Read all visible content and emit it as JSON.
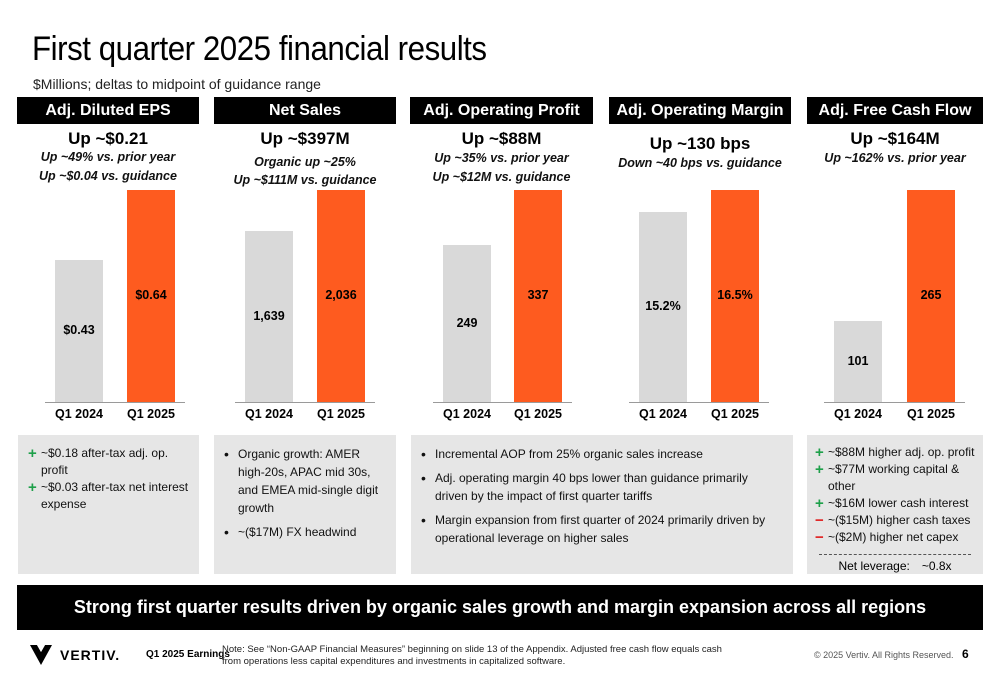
{
  "title": "First quarter 2025 financial results",
  "subtitle": "$Millions; deltas to midpoint of guidance range",
  "colors": {
    "prior": "#d9d9d9",
    "current": "#fe5b1f",
    "plus": "#1ea04a",
    "minus": "#e02020"
  },
  "chart_data": [
    {
      "type": "bar",
      "title": "Adj. Diluted EPS",
      "headline": "Up ~$0.21",
      "sublines": [
        "Up ~49% vs. prior year",
        "Up ~$0.04 vs. guidance"
      ],
      "categories": [
        "Q1 2024",
        "Q1 2025"
      ],
      "values": [
        0.43,
        0.64
      ],
      "value_labels": [
        "$0.43",
        "$0.64"
      ]
    },
    {
      "type": "bar",
      "title": "Net Sales",
      "headline": "Up ~$397M",
      "sublines": [
        "Organic up ~25%",
        "Up ~$111M vs. guidance"
      ],
      "categories": [
        "Q1 2024",
        "Q1 2025"
      ],
      "values": [
        1639,
        2036
      ],
      "value_labels": [
        "1,639",
        "2,036"
      ]
    },
    {
      "type": "bar",
      "title": "Adj. Operating Profit",
      "headline": "Up ~$88M",
      "sublines": [
        "Up ~35% vs. prior year",
        "Up ~$12M vs. guidance"
      ],
      "categories": [
        "Q1 2024",
        "Q1 2025"
      ],
      "values": [
        249,
        337
      ],
      "value_labels": [
        "249",
        "337"
      ]
    },
    {
      "type": "bar",
      "title": "Adj. Operating Margin",
      "headline": "Up ~130 bps",
      "sublines": [
        "Down ~40 bps vs. guidance"
      ],
      "categories": [
        "Q1 2024",
        "Q1 2025"
      ],
      "values": [
        15.2,
        16.5
      ],
      "value_labels": [
        "15.2%",
        "16.5%"
      ]
    },
    {
      "type": "bar",
      "title": "Adj. Free Cash Flow",
      "headline": "Up ~$164M",
      "sublines": [
        "Up ~162% vs. prior year"
      ],
      "categories": [
        "Q1 2024",
        "Q1 2025"
      ],
      "values": [
        101,
        265
      ],
      "value_labels": [
        "101",
        "265"
      ]
    }
  ],
  "boxes": {
    "eps": [
      {
        "sign": "+",
        "text": "~$0.18 after-tax adj. op. profit"
      },
      {
        "sign": "+",
        "text": "~$0.03 after-tax net interest expense"
      }
    ],
    "sales": [
      "Organic growth: AMER high-20s, APAC mid 30s, and EMEA mid-single digit growth",
      "~($17M) FX headwind"
    ],
    "aop": [
      "Incremental AOP from 25% organic sales increase",
      "Adj. operating margin 40 bps lower than guidance primarily driven by the impact of first quarter tariffs",
      "Margin expansion from first quarter of 2024 primarily driven by operational leverage on higher sales"
    ],
    "fcf": [
      {
        "sign": "+",
        "text": "~$88M higher adj. op. profit"
      },
      {
        "sign": "+",
        "text": "~$77M working capital & other"
      },
      {
        "sign": "+",
        "text": "~$16M lower cash interest"
      },
      {
        "sign": "−",
        "text": "~($15M) higher cash taxes"
      },
      {
        "sign": "−",
        "text": "~($2M) higher net capex"
      }
    ],
    "leverage_label": "Net leverage:",
    "leverage_value": "~0.8x"
  },
  "banner": "Strong first quarter results driven by organic sales growth and margin expansion across all regions",
  "footer": {
    "logo": "VERTIV.",
    "earnings": "Q1 2025 Earnings",
    "note": "Note: See “Non-GAAP Financial Measures” beginning on slide 13 of the Appendix.  Adjusted free cash flow equals cash from operations less capital expenditures and investments in capitalized software.",
    "copyright": "© 2025 Vertiv. All Rights Reserved.",
    "page": "6"
  }
}
